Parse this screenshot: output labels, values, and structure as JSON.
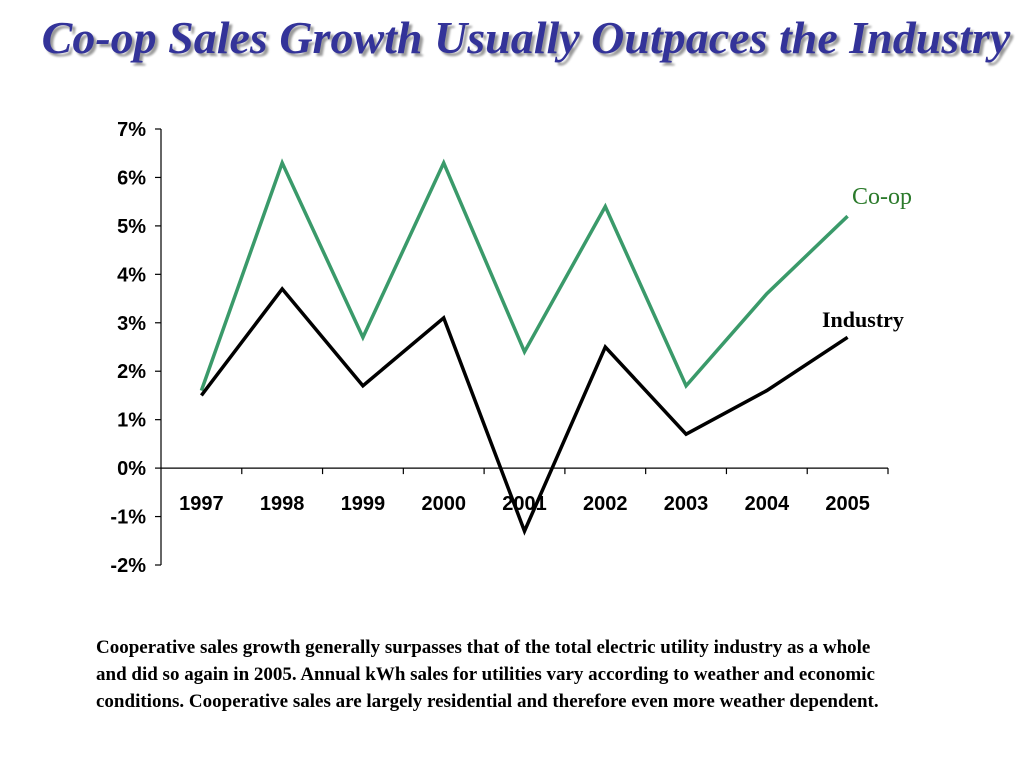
{
  "slide": {
    "title": "Co-op Sales Growth Usually Outpaces the Industry",
    "caption": "Cooperative sales growth generally surpasses that of the total electric utility industry as a whole and did so again in 2005.  Annual kWh sales for utilities vary according to weather and economic conditions.  Cooperative sales are largely residential and therefore even more weather dependent."
  },
  "chart_data": {
    "type": "line",
    "title": "",
    "xlabel": "",
    "ylabel": "",
    "categories": [
      "1997",
      "1998",
      "1999",
      "2000",
      "2001",
      "2002",
      "2003",
      "2004",
      "2005"
    ],
    "ylim": [
      -2,
      7
    ],
    "y_ticks": [
      "-2%",
      "-1%",
      "0%",
      "1%",
      "2%",
      "3%",
      "4%",
      "5%",
      "6%",
      "7%"
    ],
    "grid": false,
    "legend": "direct labels at line ends",
    "series": [
      {
        "name": "Co-op",
        "color": "#3a9a6a",
        "label_color": "#2b7a2b",
        "values": [
          1.6,
          6.3,
          2.7,
          6.3,
          2.4,
          5.4,
          1.7,
          3.6,
          5.2
        ]
      },
      {
        "name": "Industry",
        "color": "#000000",
        "label_color": "#000000",
        "values": [
          1.5,
          3.7,
          1.7,
          3.1,
          -1.3,
          2.5,
          0.7,
          1.6,
          2.7
        ]
      }
    ]
  }
}
